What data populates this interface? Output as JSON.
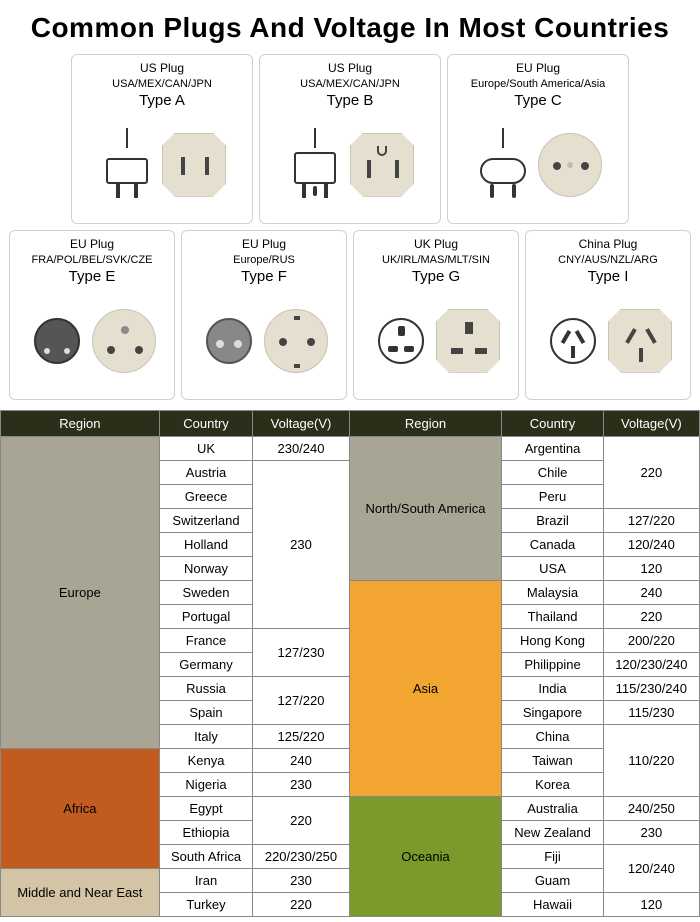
{
  "title": "Common Plugs And Voltage In Most Countries",
  "colors": {
    "header_bg": "#2a2f1a",
    "header_text": "#ffffff",
    "europe": "#a8a594",
    "africa": "#c25b1f",
    "middle_east": "#d3c4a5",
    "americas": "#a8a594",
    "asia": "#f2a531",
    "oceania": "#7a9a2b",
    "card_border": "#d0d0d0",
    "socket_bg": "#e4dfcf"
  },
  "plugs": [
    {
      "name": "US Plug",
      "regions": "USA/MEX/CAN/JPN",
      "type": "Type A",
      "socket_kind": "A"
    },
    {
      "name": "US Plug",
      "regions": "USA/MEX/CAN/JPN",
      "type": "Type B",
      "socket_kind": "B"
    },
    {
      "name": "EU Plug",
      "regions": "Europe/South America/Asia",
      "type": "Type C",
      "socket_kind": "C"
    },
    {
      "name": "EU Plug",
      "regions": "FRA/POL/BEL/SVK/CZE",
      "type": "Type E",
      "socket_kind": "E"
    },
    {
      "name": "EU Plug",
      "regions": "Europe/RUS",
      "type": "Type F",
      "socket_kind": "F"
    },
    {
      "name": "UK Plug",
      "regions": "UK/IRL/MAS/MLT/SIN",
      "type": "Type G",
      "socket_kind": "G"
    },
    {
      "name": "China Plug",
      "regions": "CNY/AUS/NZL/ARG",
      "type": "Type I",
      "socket_kind": "I"
    }
  ],
  "table": {
    "headers": [
      "Region",
      "Country",
      "Voltage(V)",
      "Region",
      "Country",
      "Voltage(V)"
    ],
    "left": [
      {
        "region": "Europe",
        "color_key": "europe",
        "rows": [
          {
            "country": "UK",
            "voltage": "230/240"
          },
          {
            "country": "Austria",
            "voltage_merge_start": true,
            "voltage": "230",
            "voltage_span": 7
          },
          {
            "country": "Greece"
          },
          {
            "country": "Switzerland"
          },
          {
            "country": "Holland"
          },
          {
            "country": "Norway"
          },
          {
            "country": "Sweden"
          },
          {
            "country": "Portugal"
          },
          {
            "country": "France",
            "voltage_merge_start": true,
            "voltage": "127/230",
            "voltage_span": 2
          },
          {
            "country": "Germany"
          },
          {
            "country": "Russia",
            "voltage_merge_start": true,
            "voltage": "127/220",
            "voltage_span": 2
          },
          {
            "country": "Spain"
          },
          {
            "country": "Italy",
            "voltage": "125/220"
          }
        ]
      },
      {
        "region": "Africa",
        "color_key": "africa",
        "rows": [
          {
            "country": "Kenya",
            "voltage": "240"
          },
          {
            "country": "Nigeria",
            "voltage": "230"
          },
          {
            "country": "Egypt",
            "voltage_merge_start": true,
            "voltage": "220",
            "voltage_span": 2
          },
          {
            "country": "Ethiopia"
          },
          {
            "country": "South Africa",
            "voltage": "220/230/250"
          }
        ]
      },
      {
        "region": "Middle and Near East",
        "color_key": "middle_east",
        "rows": [
          {
            "country": "Iran",
            "voltage": "230"
          },
          {
            "country": "Turkey",
            "voltage": "220"
          }
        ]
      }
    ],
    "right": [
      {
        "region": "North/South America",
        "color_key": "americas",
        "rows": [
          {
            "country": "Argentina",
            "voltage_merge_start": true,
            "voltage": "220",
            "voltage_span": 3
          },
          {
            "country": "Chile"
          },
          {
            "country": "Peru"
          },
          {
            "country": "Brazil",
            "voltage": "127/220"
          },
          {
            "country": "Canada",
            "voltage": "120/240"
          },
          {
            "country": "USA",
            "voltage": "120"
          }
        ]
      },
      {
        "region": "Asia",
        "color_key": "asia",
        "rows": [
          {
            "country": "Malaysia",
            "voltage": "240"
          },
          {
            "country": "Thailand",
            "voltage": "220"
          },
          {
            "country": "Hong Kong",
            "voltage": "200/220"
          },
          {
            "country": "Philippine",
            "voltage": "120/230/240"
          },
          {
            "country": "India",
            "voltage": "115/230/240"
          },
          {
            "country": "Singapore",
            "voltage": "115/230"
          },
          {
            "country": "China",
            "voltage_merge_start": true,
            "voltage": "110/220",
            "voltage_span": 3
          },
          {
            "country": "Taiwan"
          },
          {
            "country": "Korea"
          }
        ]
      },
      {
        "region": "Oceania",
        "color_key": "oceania",
        "rows": [
          {
            "country": "Australia",
            "voltage": "240/250"
          },
          {
            "country": "New Zealand",
            "voltage": "230"
          },
          {
            "country": "Fiji",
            "voltage_merge_start": true,
            "voltage": "120/240",
            "voltage_span": 2
          },
          {
            "country": "Guam"
          },
          {
            "country": "Hawaii",
            "voltage": "120"
          }
        ]
      }
    ]
  }
}
